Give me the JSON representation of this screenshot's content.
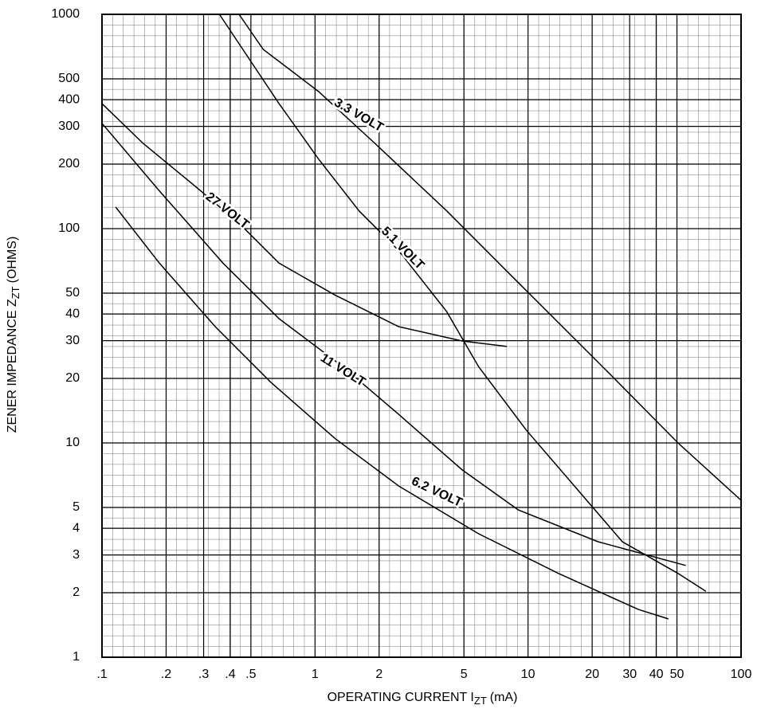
{
  "chart_data": {
    "type": "line",
    "x_label": {
      "main": "OPERATING CURRENT I",
      "sub": "ZT",
      "unit": "(mA)"
    },
    "y_label": {
      "main": "ZENER IMPEDANCE Z",
      "sub": "ZT",
      "unit": "(OHMS)"
    },
    "x_log": true,
    "y_log": true,
    "grid": true,
    "color": "#000000",
    "xlim": [
      0.1,
      100
    ],
    "ylim": [
      1,
      1000
    ],
    "xticks": [
      {
        "value": 0.1,
        "label": ".1"
      },
      {
        "value": 0.2,
        "label": ".2"
      },
      {
        "value": 0.3,
        "label": ".3"
      },
      {
        "value": 0.4,
        "label": ".4"
      },
      {
        "value": 0.5,
        "label": ".5"
      },
      1,
      2,
      5,
      10,
      20,
      30,
      40,
      50,
      100
    ],
    "yticks": [
      1,
      2,
      3,
      4,
      5,
      10,
      20,
      30,
      40,
      50,
      100,
      200,
      300,
      400,
      500,
      1000
    ],
    "series": [
      {
        "name": "3.3 VOLT",
        "x": [
          0.44,
          0.571,
          1.04,
          1.91,
          4.15,
          9.0,
          23.3,
          50.6,
          100
        ],
        "values": [
          1000,
          686,
          436,
          250,
          121,
          56,
          21.8,
          10,
          5.4
        ]
      },
      {
        "name": "5.1 VOLT",
        "x": [
          0.356,
          0.48,
          0.678,
          1.04,
          1.61,
          2.47,
          4.15,
          5.86,
          9.8,
          16.5,
          27.7,
          50.6,
          68.4
        ],
        "values": [
          1000,
          641,
          383,
          211,
          121,
          79,
          41,
          22.7,
          11.5,
          6.3,
          3.46,
          2.46,
          2.03
        ]
      },
      {
        "name": "27 VOLT",
        "x": [
          0.1,
          0.156,
          0.263,
          0.44,
          0.678,
          1.24,
          2.47,
          4.9,
          7.95
        ],
        "values": [
          383,
          250,
          163,
          106,
          69,
          49,
          34.9,
          29.9,
          28.2
        ]
      },
      {
        "name": "11 VOLT",
        "x": [
          0.1,
          0.186,
          0.37,
          0.678,
          1.35,
          2.47,
          4.9,
          9.0,
          21.3,
          55
        ],
        "values": [
          310,
          150,
          69,
          38,
          22.7,
          13.6,
          7.5,
          4.87,
          3.46,
          2.68
        ]
      },
      {
        "name": "6.2 VOLT",
        "x": [
          0.116,
          0.186,
          0.34,
          0.62,
          1.24,
          2.47,
          5.86,
          13.9,
          33,
          45.6
        ],
        "values": [
          126,
          69,
          34.9,
          19.2,
          10.5,
          6.3,
          3.77,
          2.46,
          1.67,
          1.51
        ]
      }
    ]
  }
}
